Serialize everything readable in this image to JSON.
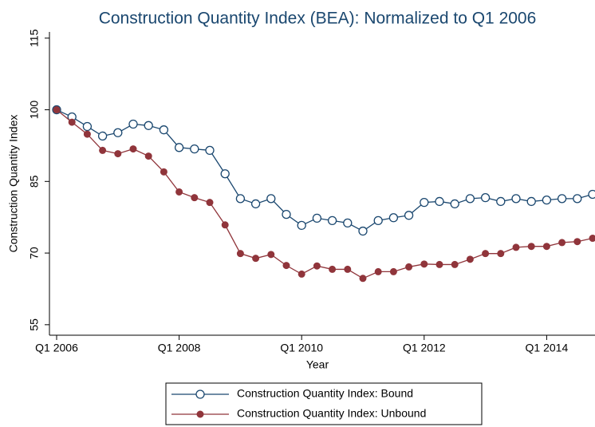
{
  "chart_data": {
    "type": "line",
    "title": "Construction Quantity Index (BEA): Normalized to Q1 2006",
    "x_label": "Year",
    "y_label": "Construction Quantity Index",
    "categories": [
      "Q1 2006",
      null,
      null,
      null,
      null,
      null,
      null,
      null,
      "Q1 2008",
      null,
      null,
      null,
      null,
      null,
      null,
      null,
      "Q1 2010",
      null,
      null,
      null,
      null,
      null,
      null,
      null,
      "Q1 2012",
      null,
      null,
      null,
      null,
      null,
      null,
      null,
      "Q1 2014",
      null,
      null,
      null
    ],
    "ylim": [
      52.8,
      116.3
    ],
    "yticks": [
      55,
      70,
      85,
      100,
      115
    ],
    "series": [
      {
        "name": "Construction Quantity Index: Bound",
        "color": "#1a476f",
        "marker": "hollow",
        "values": [
          100,
          98.5,
          96.5,
          94.5,
          95.2,
          97,
          96.7,
          95.8,
          92.1,
          91.8,
          91.5,
          86.6,
          81.4,
          80.3,
          81.4,
          78.1,
          75.8,
          77.3,
          76.8,
          76.3,
          74.6,
          76.8,
          77.4,
          77.9,
          80.6,
          80.8,
          80.3,
          81.4,
          81.6,
          80.8,
          81.4,
          80.8,
          81.1,
          81.4,
          81.4,
          82.3
        ]
      },
      {
        "name": "Construction Quantity Index: Unbound",
        "color": "#90353b",
        "marker": "filled",
        "values": [
          100,
          97.4,
          94.9,
          91.5,
          90.8,
          91.8,
          90.3,
          87,
          82.8,
          81.6,
          80.6,
          75.9,
          69.9,
          68.9,
          69.7,
          67.4,
          65.6,
          67.3,
          66.6,
          66.6,
          64.7,
          66.1,
          66.1,
          67.1,
          67.7,
          67.6,
          67.6,
          68.7,
          69.9,
          69.9,
          71.2,
          71.4,
          71.4,
          72.2,
          72.4,
          73.1
        ]
      }
    ]
  }
}
